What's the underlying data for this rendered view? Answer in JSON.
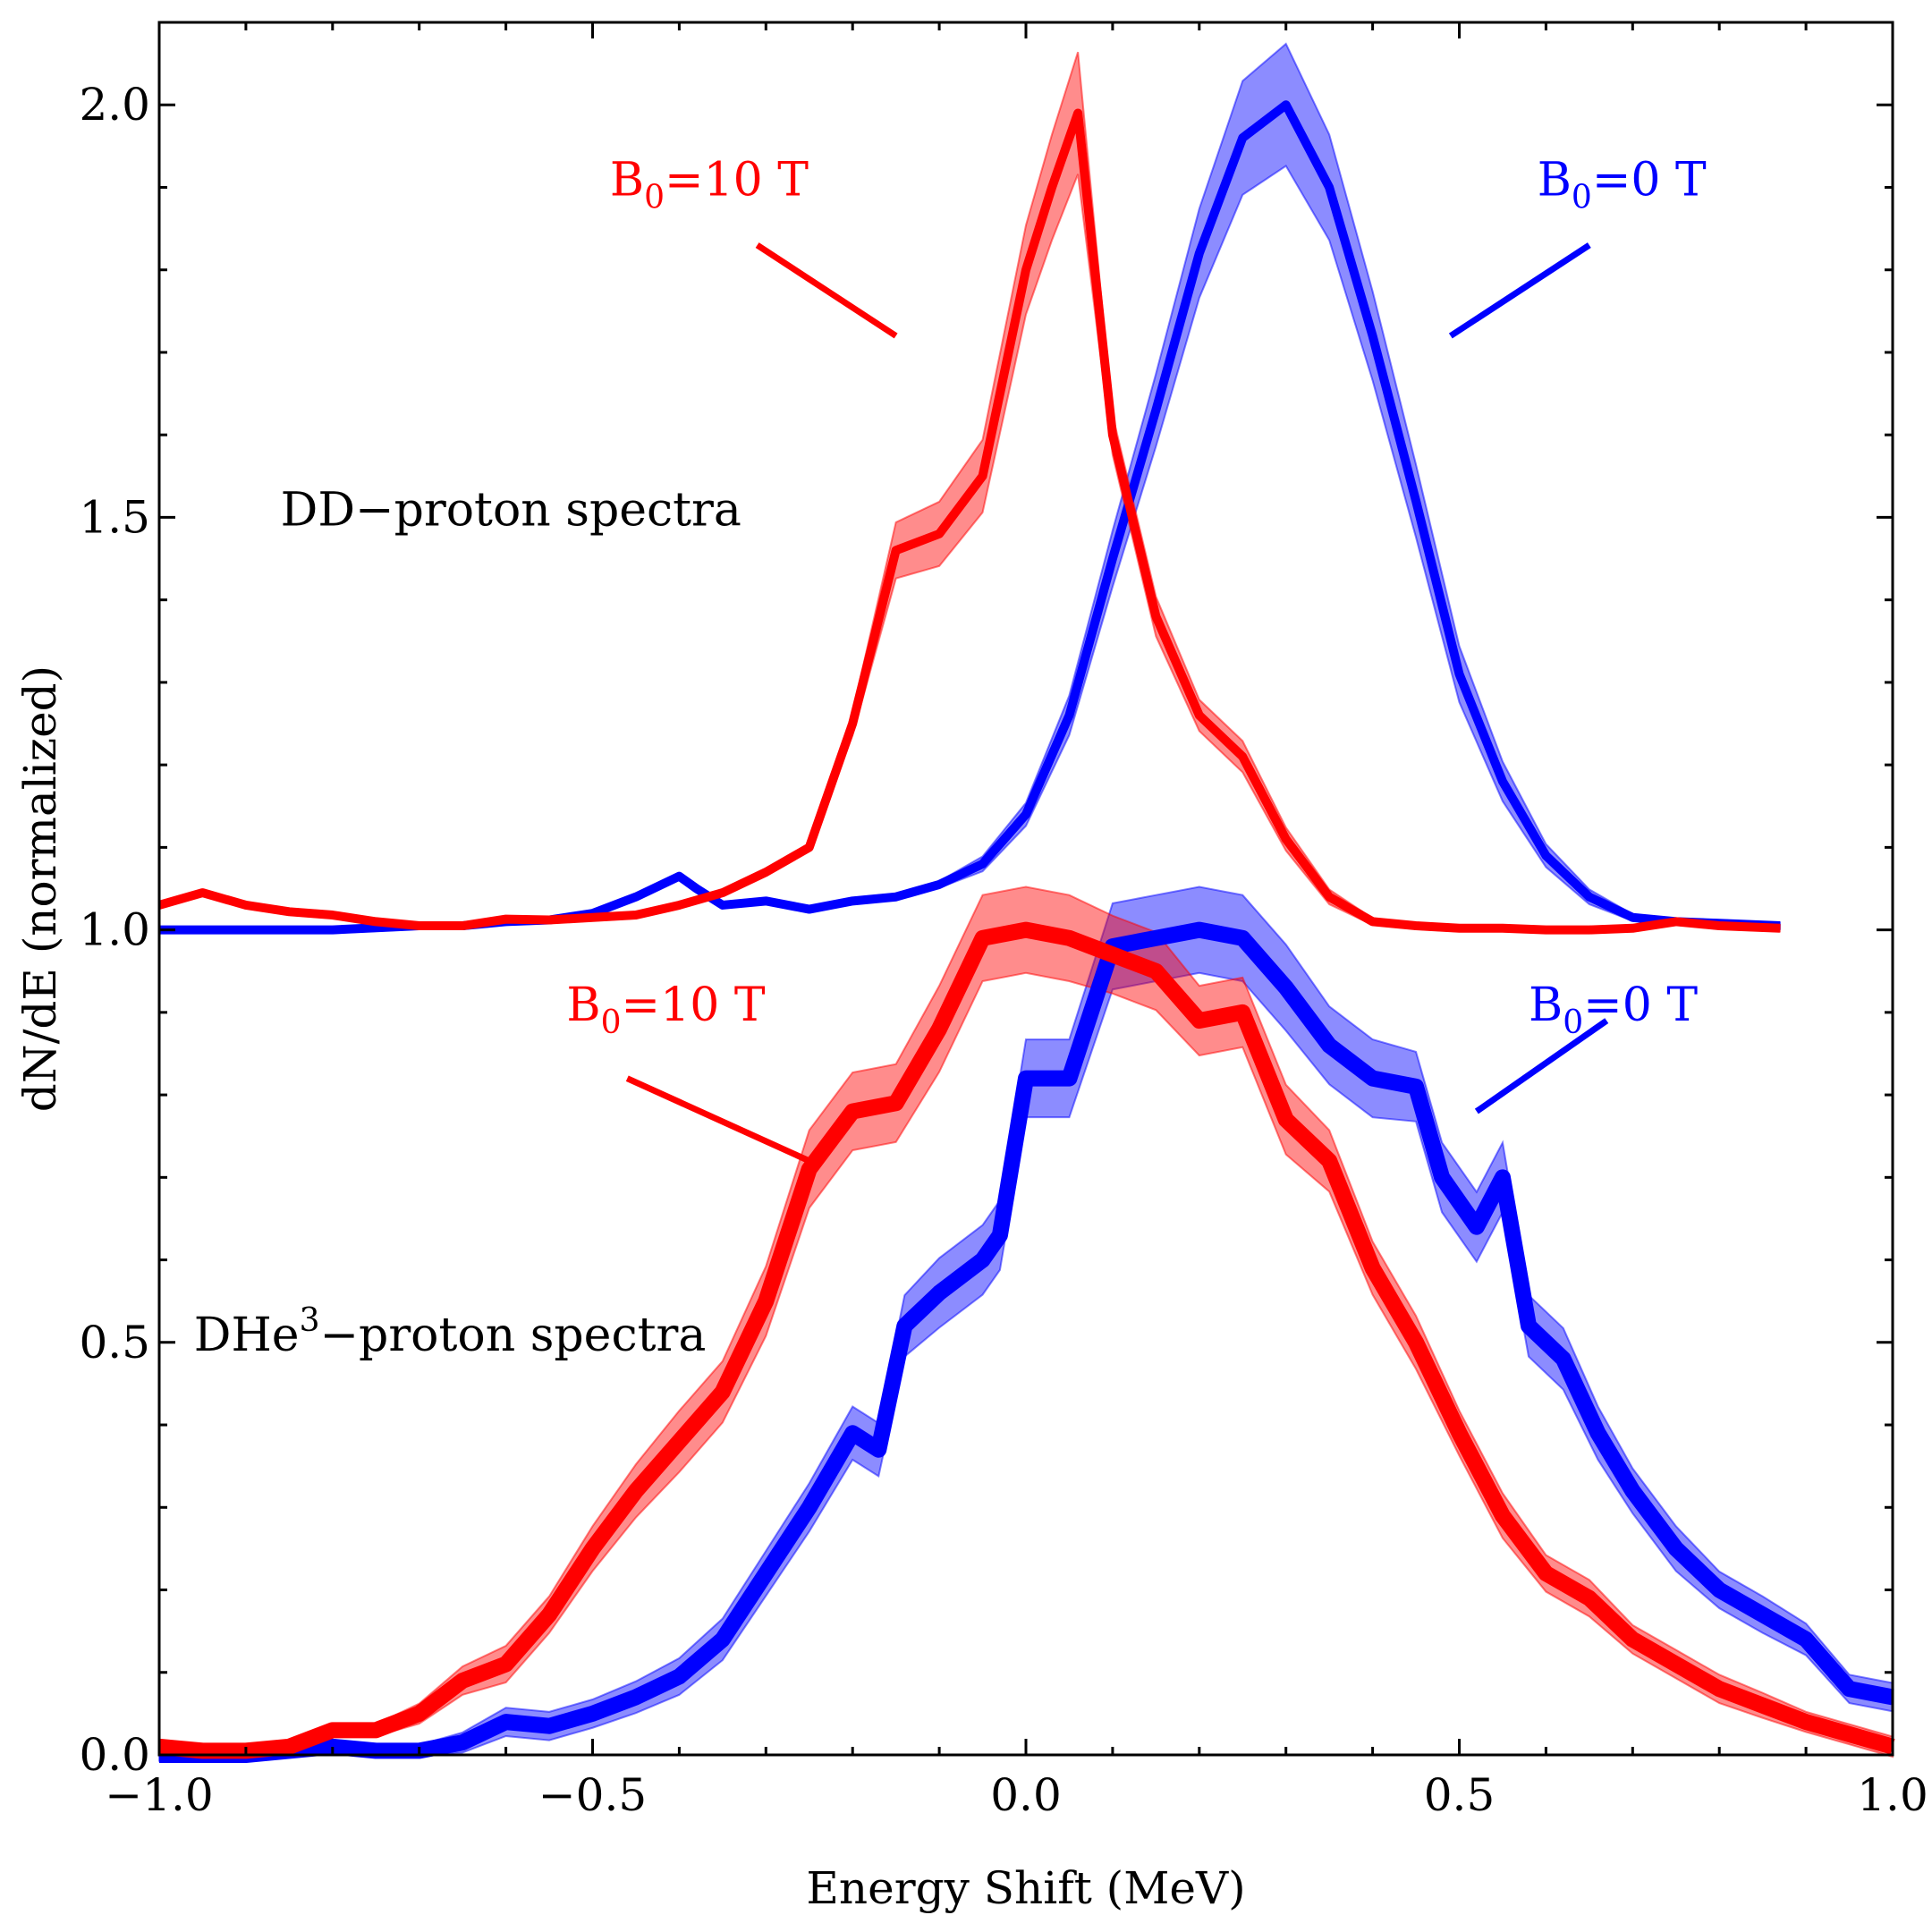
{
  "chart_data": {
    "type": "line",
    "title": "",
    "xlabel": "Energy Shift (MeV)",
    "ylabel": "dN/dE (normalized)",
    "xlim": [
      -1.0,
      1.0
    ],
    "ylim": [
      0.0,
      2.1
    ],
    "xticks": [
      -1.0,
      -0.5,
      0.0,
      0.5,
      1.0
    ],
    "xtick_labels": [
      "−1.0",
      "−0.5",
      "0.0",
      "0.5",
      "1.0"
    ],
    "yticks": [
      0.0,
      0.5,
      1.0,
      1.5,
      2.0
    ],
    "ytick_labels": [
      "0.0",
      "0.5",
      "1.0",
      "1.5",
      "2.0"
    ],
    "colors": {
      "red": "#ff0000",
      "blue": "#0000ff"
    },
    "annotations": [
      {
        "id": "dd-title",
        "text": "DD−proton spectra",
        "x": -0.86,
        "y": 1.49,
        "color": "#000000"
      },
      {
        "id": "dhe3-title",
        "base": "DHe",
        "sup": "3",
        "rest": "−proton spectra",
        "x": -0.96,
        "y": 0.49,
        "color": "#000000"
      },
      {
        "id": "dd-red-label",
        "base": "B",
        "sub": "0",
        "rest": "=10 T",
        "x": -0.48,
        "y": 1.89,
        "color": "#ff0000",
        "pointer": [
          [
            -0.31,
            1.83
          ],
          [
            -0.15,
            1.72
          ]
        ]
      },
      {
        "id": "dd-blue-label",
        "base": "B",
        "sub": "0",
        "rest": "=0 T",
        "x": 0.59,
        "y": 1.89,
        "color": "#0000ff",
        "pointer": [
          [
            0.65,
            1.83
          ],
          [
            0.49,
            1.72
          ]
        ]
      },
      {
        "id": "dhe3-red-label",
        "base": "B",
        "sub": "0",
        "rest": "=10 T",
        "x": -0.53,
        "y": 0.89,
        "color": "#ff0000",
        "pointer": [
          [
            -0.46,
            0.82
          ],
          [
            -0.25,
            0.72
          ]
        ]
      },
      {
        "id": "dhe3-blue-label",
        "base": "B",
        "sub": "0",
        "rest": "=0 T",
        "x": 0.58,
        "y": 0.89,
        "color": "#0000ff",
        "pointer": [
          [
            0.67,
            0.89
          ],
          [
            0.52,
            0.78
          ]
        ]
      }
    ],
    "series": [
      {
        "name": "DD-proton B0=0 T",
        "color": "#0000ff",
        "linewidth": 10,
        "x": [
          -1.0,
          -0.9,
          -0.8,
          -0.7,
          -0.65,
          -0.6,
          -0.55,
          -0.5,
          -0.45,
          -0.4,
          -0.38,
          -0.35,
          -0.3,
          -0.25,
          -0.2,
          -0.15,
          -0.1,
          -0.05,
          0.0,
          0.05,
          0.1,
          0.15,
          0.2,
          0.25,
          0.3,
          0.35,
          0.4,
          0.45,
          0.5,
          0.55,
          0.6,
          0.65,
          0.7,
          0.75,
          0.8,
          0.87
        ],
        "y": [
          1.0,
          1.0,
          1.0,
          1.005,
          1.005,
          1.01,
          1.012,
          1.02,
          1.04,
          1.065,
          1.05,
          1.03,
          1.035,
          1.025,
          1.035,
          1.04,
          1.055,
          1.08,
          1.14,
          1.26,
          1.45,
          1.63,
          1.82,
          1.96,
          2.0,
          1.9,
          1.72,
          1.52,
          1.31,
          1.18,
          1.09,
          1.04,
          1.015,
          1.01,
          1.008,
          1.005
        ],
        "band": [
          0.0,
          0.0,
          0.0,
          0.0,
          0.0,
          0.0,
          0.0,
          0.0,
          0.0,
          0.0,
          0.0,
          0.0,
          0.0,
          0.0,
          0.0,
          0.0,
          0.0,
          0.005,
          0.01,
          0.02,
          0.03,
          0.04,
          0.05,
          0.065,
          0.07,
          0.06,
          0.05,
          0.04,
          0.03,
          0.02,
          0.01,
          0.005,
          0.0,
          0.0,
          0.0,
          0.0
        ]
      },
      {
        "name": "DD-proton B0=10 T",
        "color": "#ff0000",
        "linewidth": 10,
        "x": [
          -1.0,
          -0.95,
          -0.9,
          -0.85,
          -0.8,
          -0.75,
          -0.7,
          -0.65,
          -0.6,
          -0.55,
          -0.5,
          -0.45,
          -0.4,
          -0.35,
          -0.3,
          -0.25,
          -0.2,
          -0.15,
          -0.1,
          -0.05,
          0.0,
          0.03,
          0.06,
          0.1,
          0.15,
          0.2,
          0.25,
          0.3,
          0.35,
          0.4,
          0.45,
          0.5,
          0.55,
          0.6,
          0.65,
          0.7,
          0.75,
          0.8,
          0.87
        ],
        "y": [
          1.03,
          1.045,
          1.03,
          1.022,
          1.018,
          1.01,
          1.005,
          1.005,
          1.013,
          1.012,
          1.015,
          1.018,
          1.03,
          1.045,
          1.07,
          1.1,
          1.25,
          1.46,
          1.48,
          1.55,
          1.8,
          1.9,
          1.99,
          1.6,
          1.38,
          1.26,
          1.21,
          1.11,
          1.04,
          1.01,
          1.005,
          1.002,
          1.002,
          1.0,
          1.0,
          1.002,
          1.01,
          1.005,
          1.002
        ],
        "band": [
          0.0,
          0.0,
          0.0,
          0.0,
          0.0,
          0.0,
          0.0,
          0.0,
          0.0,
          0.0,
          0.0,
          0.0,
          0.0,
          0.0,
          0.0,
          0.0,
          0.01,
          0.03,
          0.035,
          0.04,
          0.05,
          0.06,
          0.07,
          0.02,
          0.02,
          0.015,
          0.015,
          0.01,
          0.005,
          0.0,
          0.0,
          0.0,
          0.0,
          0.0,
          0.0,
          0.0,
          0.0,
          0.0,
          0.0
        ]
      },
      {
        "name": "DHe3-proton B0=0 T",
        "color": "#0000ff",
        "linewidth": 18,
        "x": [
          -1.0,
          -0.9,
          -0.8,
          -0.75,
          -0.7,
          -0.65,
          -0.6,
          -0.55,
          -0.5,
          -0.45,
          -0.4,
          -0.35,
          -0.3,
          -0.25,
          -0.2,
          -0.17,
          -0.14,
          -0.1,
          -0.05,
          -0.03,
          0.0,
          0.05,
          0.1,
          0.15,
          0.2,
          0.25,
          0.3,
          0.35,
          0.4,
          0.45,
          0.48,
          0.52,
          0.55,
          0.58,
          0.62,
          0.66,
          0.7,
          0.75,
          0.8,
          0.85,
          0.9,
          0.95,
          1.0
        ],
        "y": [
          0.0,
          0.0,
          0.01,
          0.005,
          0.005,
          0.015,
          0.04,
          0.035,
          0.05,
          0.07,
          0.095,
          0.14,
          0.22,
          0.3,
          0.39,
          0.37,
          0.52,
          0.56,
          0.6,
          0.63,
          0.82,
          0.82,
          0.98,
          0.99,
          1.0,
          0.99,
          0.93,
          0.86,
          0.82,
          0.81,
          0.7,
          0.64,
          0.7,
          0.52,
          0.48,
          0.39,
          0.32,
          0.25,
          0.2,
          0.17,
          0.14,
          0.08,
          0.07
        ],
        "band": [
          0.0,
          0.0,
          0.0,
          0.0,
          0.0,
          0.005,
          0.01,
          0.01,
          0.01,
          0.012,
          0.015,
          0.018,
          0.02,
          0.022,
          0.025,
          0.025,
          0.03,
          0.035,
          0.035,
          0.035,
          0.04,
          0.04,
          0.045,
          0.045,
          0.045,
          0.045,
          0.045,
          0.04,
          0.04,
          0.035,
          0.035,
          0.035,
          0.035,
          0.03,
          0.03,
          0.025,
          0.02,
          0.02,
          0.015,
          0.015,
          0.012,
          0.01,
          0.01
        ]
      },
      {
        "name": "DHe3-proton B0=10 T",
        "color": "#ff0000",
        "linewidth": 18,
        "x": [
          -1.0,
          -0.95,
          -0.9,
          -0.85,
          -0.8,
          -0.75,
          -0.7,
          -0.65,
          -0.6,
          -0.55,
          -0.5,
          -0.45,
          -0.4,
          -0.35,
          -0.3,
          -0.25,
          -0.2,
          -0.15,
          -0.1,
          -0.05,
          0.0,
          0.05,
          0.1,
          0.15,
          0.2,
          0.25,
          0.3,
          0.35,
          0.4,
          0.45,
          0.5,
          0.55,
          0.6,
          0.65,
          0.7,
          0.75,
          0.8,
          0.85,
          0.9,
          0.95,
          1.0
        ],
        "y": [
          0.01,
          0.005,
          0.005,
          0.01,
          0.03,
          0.03,
          0.05,
          0.09,
          0.11,
          0.17,
          0.25,
          0.32,
          0.38,
          0.44,
          0.55,
          0.71,
          0.78,
          0.79,
          0.88,
          0.99,
          1.0,
          0.99,
          0.97,
          0.95,
          0.89,
          0.9,
          0.77,
          0.72,
          0.59,
          0.5,
          0.39,
          0.29,
          0.22,
          0.19,
          0.14,
          0.11,
          0.08,
          0.06,
          0.04,
          0.025,
          0.01
        ],
        "band": [
          0.0,
          0.0,
          0.0,
          0.0,
          0.0,
          0.0,
          0.005,
          0.01,
          0.015,
          0.015,
          0.02,
          0.025,
          0.03,
          0.03,
          0.035,
          0.04,
          0.04,
          0.04,
          0.045,
          0.045,
          0.045,
          0.045,
          0.04,
          0.04,
          0.035,
          0.035,
          0.035,
          0.03,
          0.025,
          0.025,
          0.02,
          0.02,
          0.015,
          0.015,
          0.01,
          0.01,
          0.01,
          0.008,
          0.005,
          0.005,
          0.005
        ]
      }
    ]
  }
}
